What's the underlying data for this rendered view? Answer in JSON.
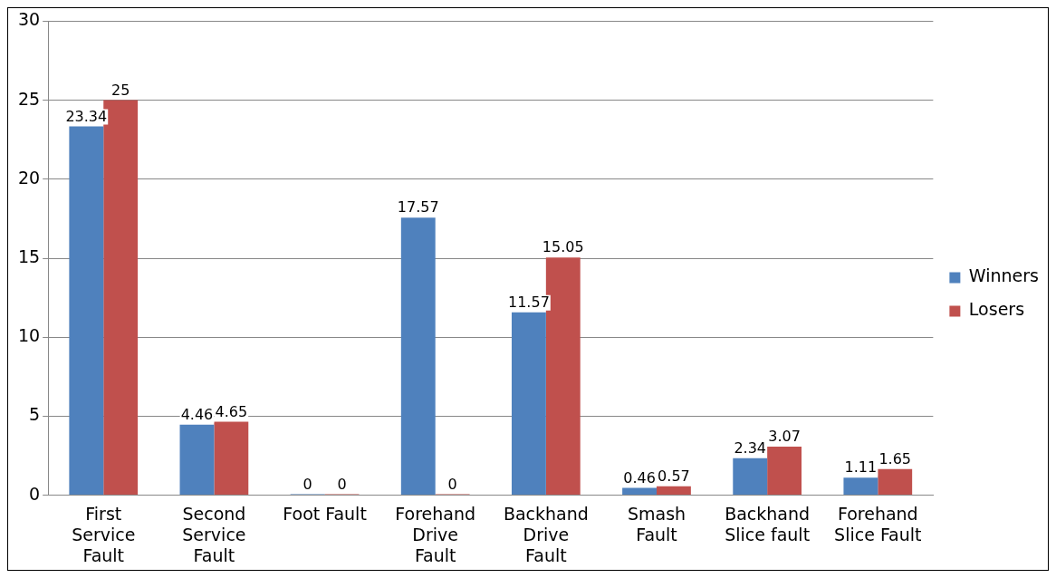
{
  "chart_data": {
    "type": "bar",
    "categories": [
      "First Service Fault",
      "Second Service Fault",
      "Foot Fault",
      "Forehand Drive Fault",
      "Backhand Drive Fault",
      "Smash Fault",
      "Backhand Slice fault",
      "Forehand Slice Fault"
    ],
    "series": [
      {
        "name": "Winners",
        "color": "#4f81bd",
        "values": [
          23.34,
          4.46,
          0,
          17.57,
          11.57,
          0.46,
          2.34,
          1.11
        ]
      },
      {
        "name": "Losers",
        "color": "#c0504d",
        "values": [
          25,
          4.65,
          0,
          0,
          15.05,
          0.57,
          3.07,
          1.65
        ]
      }
    ],
    "ylim": [
      0,
      30
    ],
    "yticks": [
      0,
      5,
      10,
      15,
      20,
      25,
      30
    ],
    "grid": "y",
    "legend": "right",
    "data_labels": true
  }
}
